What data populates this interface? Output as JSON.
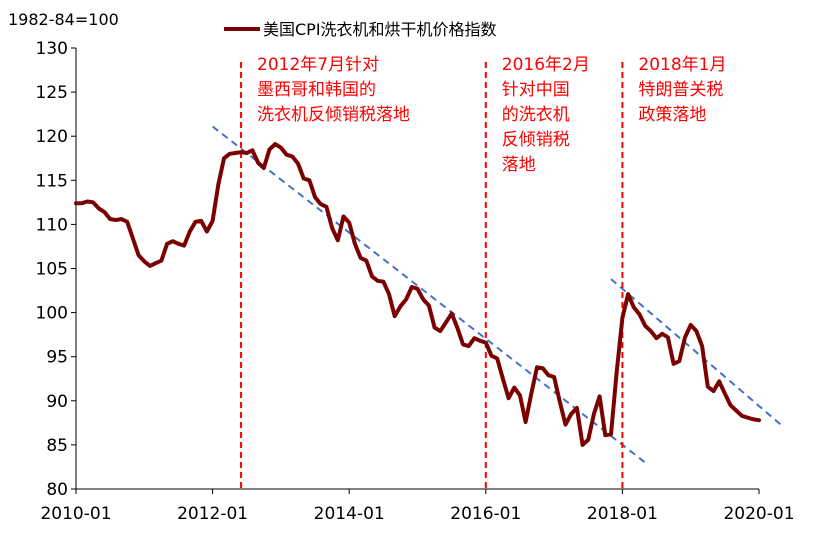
{
  "chart_data": {
    "type": "line",
    "unit_label": "1982-84=100",
    "series": [
      {
        "name": "美国CPI洗衣机和烘干机价格指数",
        "color": "#7b0000",
        "x": [
          "2010-01",
          "2010-02",
          "2010-03",
          "2010-04",
          "2010-05",
          "2010-06",
          "2010-07",
          "2010-08",
          "2010-09",
          "2010-10",
          "2010-11",
          "2010-12",
          "2011-01",
          "2011-02",
          "2011-03",
          "2011-04",
          "2011-05",
          "2011-06",
          "2011-07",
          "2011-08",
          "2011-09",
          "2011-10",
          "2011-11",
          "2011-12",
          "2012-01",
          "2012-02",
          "2012-03",
          "2012-04",
          "2012-05",
          "2012-06",
          "2012-07",
          "2012-08",
          "2012-09",
          "2012-10",
          "2012-11",
          "2012-12",
          "2013-01",
          "2013-02",
          "2013-03",
          "2013-04",
          "2013-05",
          "2013-06",
          "2013-07",
          "2013-08",
          "2013-09",
          "2013-10",
          "2013-11",
          "2013-12",
          "2014-01",
          "2014-02",
          "2014-03",
          "2014-04",
          "2014-05",
          "2014-06",
          "2014-07",
          "2014-08",
          "2014-09",
          "2014-10",
          "2014-11",
          "2014-12",
          "2015-01",
          "2015-02",
          "2015-03",
          "2015-04",
          "2015-05",
          "2015-06",
          "2015-07",
          "2015-08",
          "2015-09",
          "2015-10",
          "2015-11",
          "2015-12",
          "2016-01",
          "2016-02",
          "2016-03",
          "2016-04",
          "2016-05",
          "2016-06",
          "2016-07",
          "2016-08",
          "2016-09",
          "2016-10",
          "2016-11",
          "2016-12",
          "2017-01",
          "2017-02",
          "2017-03",
          "2017-04",
          "2017-05",
          "2017-06",
          "2017-07",
          "2017-08",
          "2017-09",
          "2017-10",
          "2017-11",
          "2017-12",
          "2018-01",
          "2018-02",
          "2018-03",
          "2018-04",
          "2018-05",
          "2018-06",
          "2018-07",
          "2018-08",
          "2018-09",
          "2018-10",
          "2018-11",
          "2018-12",
          "2019-01",
          "2019-02",
          "2019-03",
          "2019-04",
          "2019-05",
          "2019-06",
          "2019-07",
          "2019-08",
          "2019-09",
          "2019-10",
          "2019-11",
          "2019-12",
          "2020-01"
        ],
        "values": [
          112.4,
          112.4,
          112.6,
          112.5,
          111.8,
          111.4,
          110.6,
          110.5,
          110.6,
          110.3,
          108.4,
          106.5,
          105.8,
          105.3,
          105.6,
          105.9,
          107.8,
          108.1,
          107.8,
          107.6,
          109.2,
          110.3,
          110.4,
          109.2,
          110.4,
          114.5,
          117.5,
          118.0,
          118.1,
          118.2,
          118.1,
          118.4,
          117.0,
          116.4,
          118.5,
          119.1,
          118.7,
          117.9,
          117.7,
          116.9,
          115.2,
          115.0,
          113.1,
          112.3,
          112.0,
          109.6,
          108.2,
          110.9,
          110.2,
          107.8,
          106.2,
          105.9,
          104.1,
          103.6,
          103.5,
          102.1,
          99.6,
          100.7,
          101.5,
          102.9,
          102.7,
          101.5,
          100.8,
          98.3,
          97.9,
          98.9,
          99.9,
          98.3,
          96.4,
          96.2,
          97.1,
          96.8,
          96.6,
          95.1,
          94.8,
          92.5,
          90.3,
          91.5,
          90.6,
          87.6,
          90.8,
          93.8,
          93.7,
          92.9,
          92.7,
          89.9,
          87.3,
          88.5,
          89.2,
          85.0,
          85.6,
          88.5,
          90.5,
          86.1,
          86.2,
          93.3,
          99.4,
          102.1,
          100.6,
          99.8,
          98.5,
          97.9,
          97.1,
          97.6,
          97.2,
          94.2,
          94.5,
          97.2,
          98.6,
          97.9,
          96.2,
          91.6,
          91.1,
          92.2,
          90.8,
          89.5,
          88.9,
          88.3,
          88.1,
          87.9,
          87.8
        ]
      }
    ],
    "trendlines": [
      {
        "x_start": "2012-01",
        "y_start": 121.1,
        "x_end": "2018-05",
        "y_end": 83.0,
        "color": "#4472c4",
        "style": "dashed"
      },
      {
        "x_start": "2017-11",
        "y_start": 103.8,
        "x_end": "2020-05",
        "y_end": 87.2,
        "color": "#4472c4",
        "style": "dashed"
      }
    ],
    "events": [
      {
        "x": "2012-06",
        "lines": [
          "2012年7月针对",
          "墨西哥和韩国的",
          "洗衣机反倾销税落地"
        ]
      },
      {
        "x": "2016-01",
        "lines": [
          "2016年2月",
          "针对中国",
          "的洗衣机",
          "反倾销税",
          "落地"
        ]
      },
      {
        "x": "2018-01",
        "lines": [
          "2018年1月",
          "特朗普关税",
          "政策落地"
        ]
      }
    ],
    "xlim": [
      "2010-01",
      "2020-01"
    ],
    "x_ticks": [
      "2010-01",
      "2012-01",
      "2014-01",
      "2016-01",
      "2018-01",
      "2020-01"
    ],
    "ylim": [
      80,
      130
    ],
    "y_ticks": [
      80,
      85,
      90,
      95,
      100,
      105,
      110,
      115,
      120,
      125,
      130
    ],
    "grid": false,
    "legend_position": "top"
  }
}
